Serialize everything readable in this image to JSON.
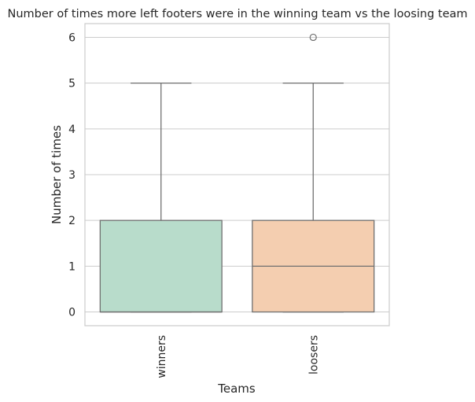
{
  "chart_data": {
    "type": "box",
    "title": "Number of times more left footers were in the winning team vs the loosing team",
    "xlabel": "Teams",
    "ylabel": "Number of times",
    "ylim": [
      -0.3,
      6.3
    ],
    "yticks": [
      0,
      1,
      2,
      3,
      4,
      5,
      6
    ],
    "grid": "horizontal",
    "categories": [
      "winners",
      "loosers"
    ],
    "boxes": [
      {
        "category": "winners",
        "whisker_low": 0,
        "q1": 0,
        "median": 0,
        "q3": 2,
        "whisker_high": 5,
        "outliers": [],
        "color": "#b8dccb"
      },
      {
        "category": "loosers",
        "whisker_low": 0,
        "q1": 0,
        "median": 1,
        "q3": 2,
        "whisker_high": 5,
        "outliers": [
          6
        ],
        "color": "#f4ceb0"
      }
    ]
  }
}
